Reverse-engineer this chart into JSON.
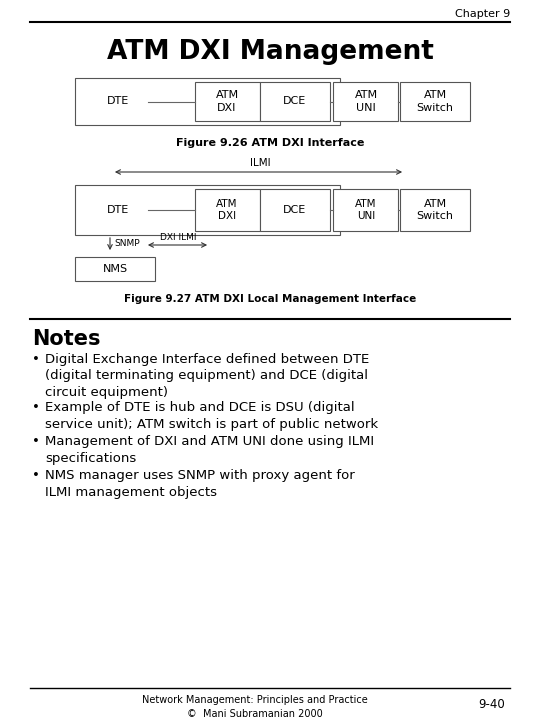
{
  "chapter": "Chapter 9",
  "title": "ATM DXI Management",
  "fig1_caption": "Figure 9.26 ATM DXI Interface",
  "fig2_caption": "Figure 9.27 ATM DXI Local Management Interface",
  "notes_title": "Notes",
  "bullets": [
    "Digital Exchange Interface defined between DTE\n(digital terminating equipment) and DCE (digital\ncircuit equipment)",
    "Example of DTE is hub and DCE is DSU (digital\nservice unit); ATM switch is part of public network",
    "Management of DXI and ATM UNI done using ILMI\nspecifications",
    "NMS manager uses SNMP with proxy agent for\nILMI management objects"
  ],
  "footer_left": "Network Management: Principles and Practice\n©  Mani Subramanian 2000",
  "footer_right": "9-40",
  "bg_color": "#ffffff",
  "text_color": "#000000"
}
